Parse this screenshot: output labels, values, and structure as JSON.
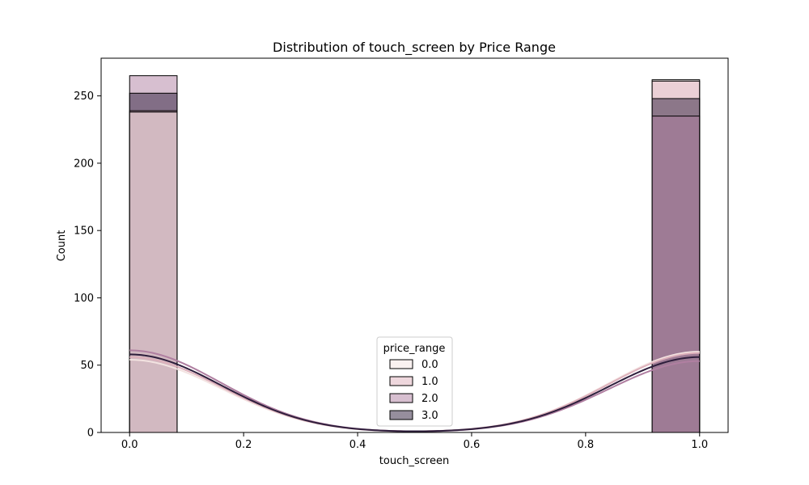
{
  "chart_data": {
    "type": "bar",
    "subtype": "histogram-stacked-with-kde",
    "title": "Distribution of touch_screen by Price Range",
    "xlabel": "touch_screen",
    "ylabel": "Count",
    "xlim": [
      -0.05,
      1.05
    ],
    "ylim": [
      0,
      278
    ],
    "xticks": [
      0.0,
      0.2,
      0.4,
      0.6,
      0.8,
      1.0
    ],
    "xtick_labels": [
      "0.0",
      "0.2",
      "0.4",
      "0.6",
      "0.8",
      "1.0"
    ],
    "yticks": [
      0,
      50,
      100,
      150,
      200,
      250
    ],
    "ytick_labels": [
      "0",
      "50",
      "100",
      "150",
      "200",
      "250"
    ],
    "bins": [
      {
        "x0": 0.0,
        "x1": 0.0833
      },
      {
        "x0": 0.9167,
        "x1": 1.0
      }
    ],
    "series": [
      {
        "name": "0.0",
        "color": "#f3e3e1",
        "counts": [
          238,
          262
        ],
        "kde": [
          54,
          60
        ]
      },
      {
        "name": "1.0",
        "color": "#ddb0bb",
        "counts": [
          239,
          261
        ],
        "kde": [
          56,
          59
        ]
      },
      {
        "name": "2.0",
        "color": "#b07fa1",
        "counts": [
          265,
          235
        ],
        "kde": [
          61,
          53
        ]
      },
      {
        "name": "3.0",
        "color": "#2e1e3c",
        "counts": [
          252,
          248
        ],
        "kde": [
          58,
          56
        ]
      }
    ],
    "legend": {
      "title": "price_range",
      "placement": "bottom-center"
    },
    "grid": false
  }
}
